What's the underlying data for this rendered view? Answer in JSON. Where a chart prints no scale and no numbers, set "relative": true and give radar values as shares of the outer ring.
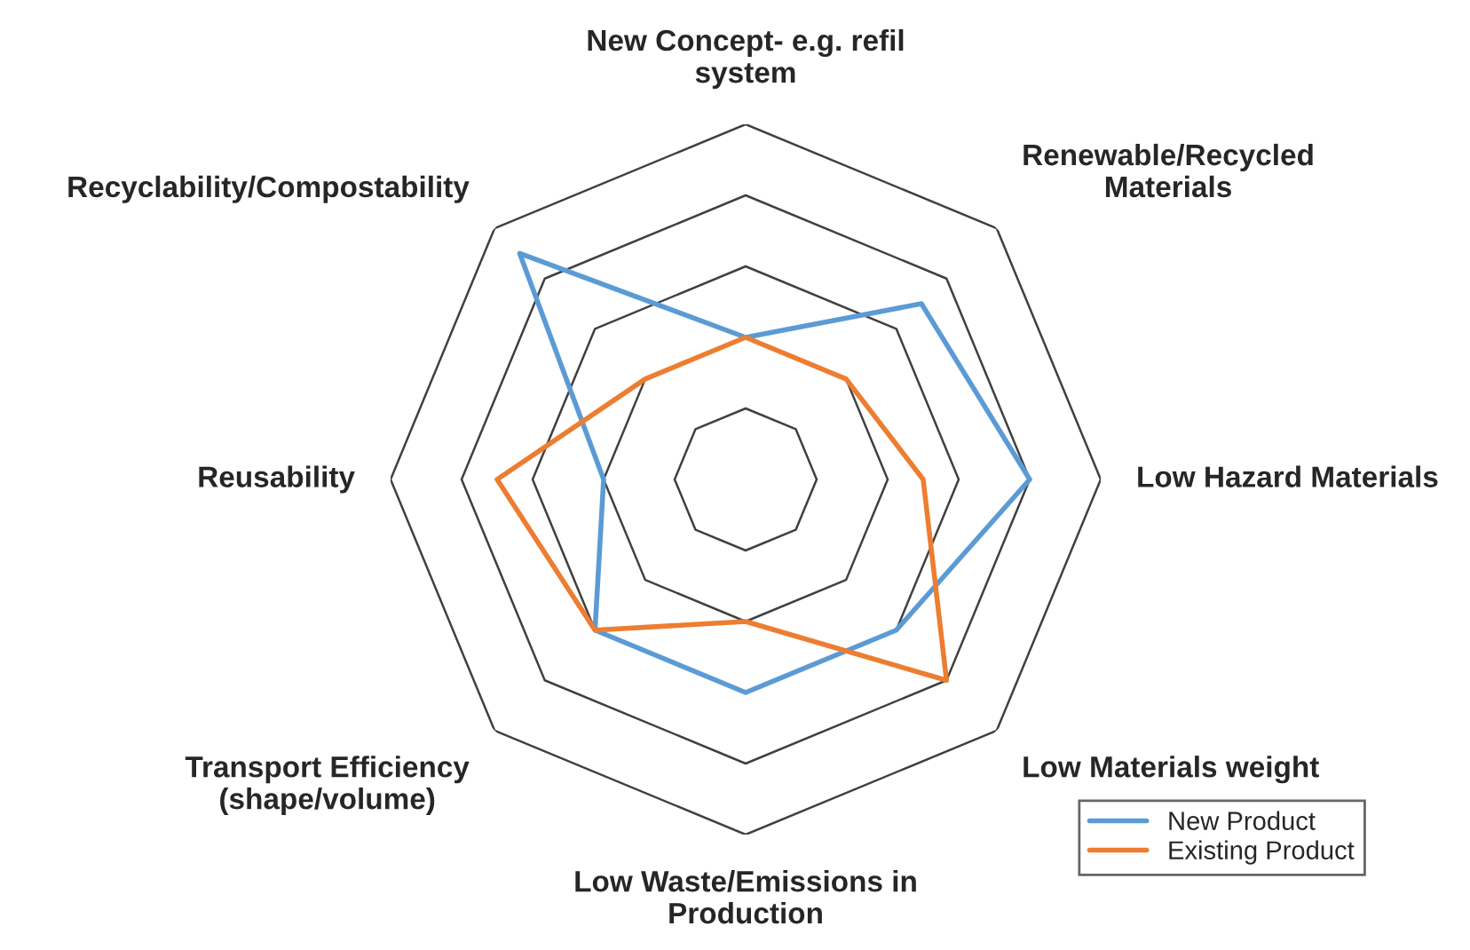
{
  "chart_data": {
    "type": "radar",
    "relative": true,
    "grid": true,
    "legend": "bottom right",
    "marker": "none",
    "categories": [
      "New Concept- e.g. refil\nsystem",
      "Renewable/Recycled\nMaterials",
      "Low Hazard Materials",
      "Low Materials weight",
      "Low Waste/Emissions in\nProduction",
      "Transport Efficiency\n(shape/volume)",
      "Reusability",
      "Recyclability/Compostability"
    ],
    "series": [
      {
        "name": "New Product",
        "color": "#5b9bd5",
        "values": [
          0.4,
          0.7,
          0.8,
          0.6,
          0.6,
          0.6,
          0.4,
          0.9
        ]
      },
      {
        "name": "Existing Product",
        "color": "#ed7d31",
        "values": [
          0.4,
          0.4,
          0.5,
          0.8,
          0.4,
          0.6,
          0.7,
          0.4
        ]
      }
    ]
  }
}
